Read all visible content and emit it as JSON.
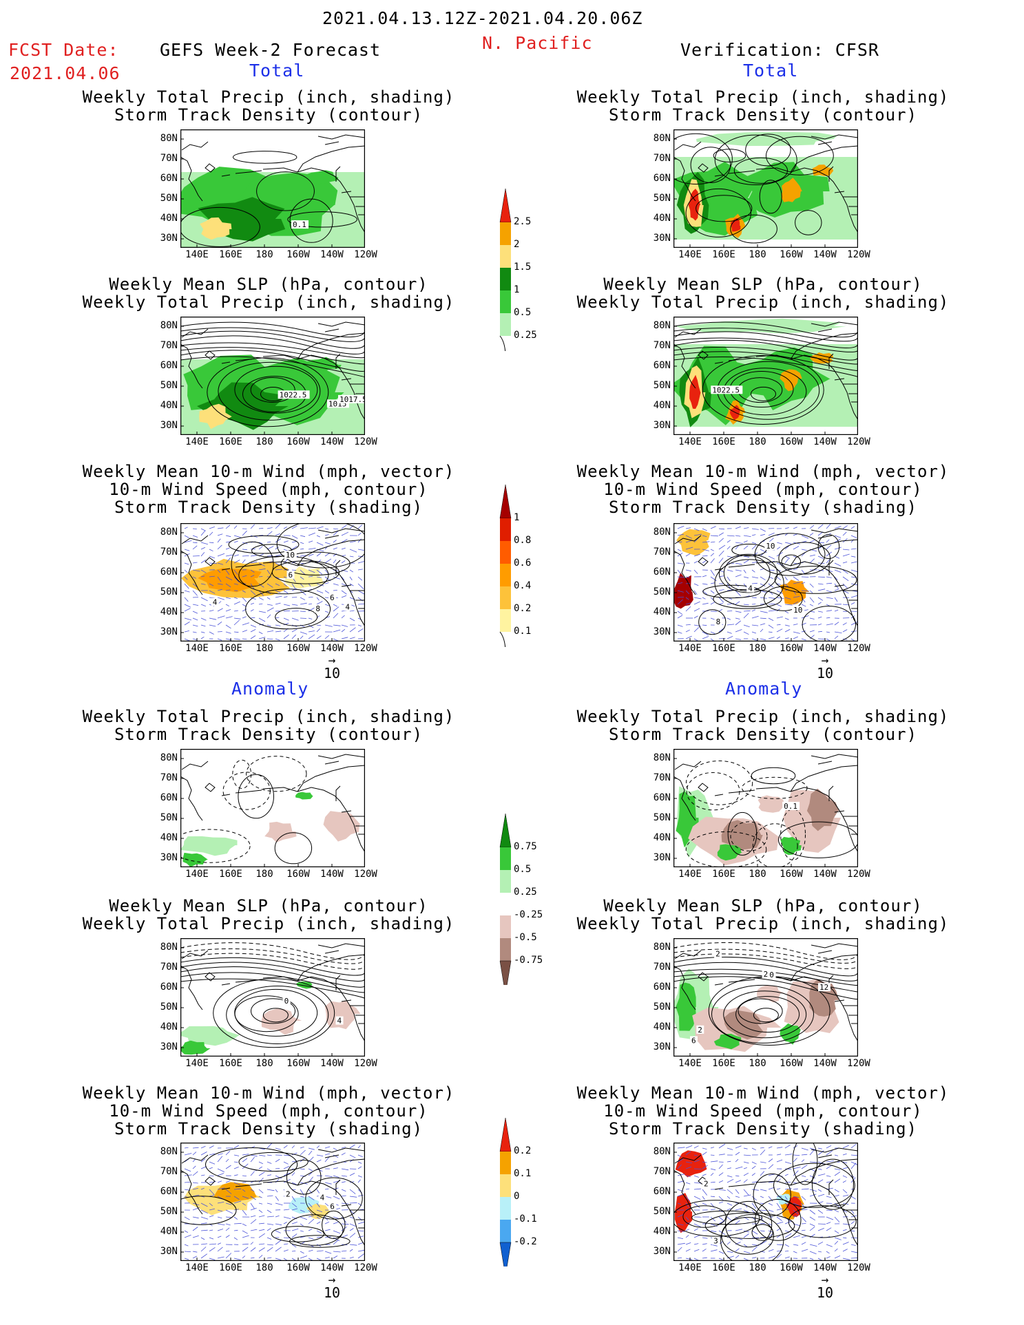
{
  "header": {
    "date_range": "2021.04.13.12Z-2021.04.20.06Z",
    "region": "N. Pacific",
    "fcst_label": "FCST Date:",
    "fcst_date": "2021.04.06",
    "left_title": "GEFS Week-2 Forecast",
    "right_title": "Verification: CFSR"
  },
  "sections": {
    "total": "Total",
    "anomaly": "Anomaly"
  },
  "panel_titles": {
    "precip_storm": [
      "Weekly Total Precip (inch, shading)",
      "Storm Track Density (contour)"
    ],
    "slp_precip": [
      "Weekly Mean SLP (hPa, contour)",
      "Weekly Total Precip (inch, shading)"
    ],
    "wind": [
      "Weekly Mean 10-m Wind (mph, vector)",
      "10-m Wind Speed (mph, contour)",
      "Storm Track Density (shading)"
    ]
  },
  "axes": {
    "lat": [
      "80N",
      "70N",
      "60N",
      "50N",
      "40N",
      "30N"
    ],
    "lon": [
      "140E",
      "160E",
      "180",
      "160W",
      "140W",
      "120W"
    ]
  },
  "vector_ref": "10",
  "colorbars": {
    "precip_total": {
      "labels": [
        "2.5",
        "2",
        "1.5",
        "1",
        "0.5",
        "0.25"
      ],
      "colors": [
        "#e8220e",
        "#f5a200",
        "#fde07a",
        "#118a11",
        "#39c839",
        "#b4f0b4"
      ]
    },
    "storm_total": {
      "labels": [
        "1",
        "0.8",
        "0.6",
        "0.4",
        "0.2",
        "0.1"
      ],
      "colors": [
        "#a50000",
        "#e01e00",
        "#ff5c00",
        "#ff9c00",
        "#fdc23a",
        "#fff3a0"
      ]
    },
    "precip_anom": {
      "labels": [
        "0.75",
        "0.5",
        "0.25",
        "-0.25",
        "-0.5",
        "-0.75"
      ],
      "colors": [
        "#118a11",
        "#39c839",
        "#b4f0b4",
        "#ffffff",
        "#e6c6bf",
        "#b18a7e",
        "#7a5044"
      ]
    },
    "storm_anom": {
      "labels": [
        "0.2",
        "0.1",
        "0",
        "-0.1",
        "-0.2"
      ],
      "colors": [
        "#e8220e",
        "#f5a200",
        "#fde07a",
        "#b8f0f8",
        "#4aa8f0",
        "#1060d0"
      ]
    }
  },
  "contour_labels": {
    "gefs_total_precip": [
      "0.1"
    ],
    "gefs_total_slp": [
      "1015",
      "1017.5",
      "1022.5"
    ],
    "cfsr_total_slp": [
      "1022.5"
    ],
    "gefs_total_wind": [
      "4",
      "6",
      "6",
      "4",
      "10",
      "8"
    ],
    "cfsr_total_wind": [
      "4",
      "8",
      "10",
      "10"
    ],
    "cfsr_anom_precip": [
      "0.1"
    ],
    "gefs_anom_slp": [
      "0",
      "4"
    ],
    "cfsr_anom_slp": [
      "12",
      "10",
      "2",
      "2",
      "6",
      "2"
    ],
    "gefs_anom_wind": [
      "4",
      "2",
      "6"
    ],
    "cfsr_anom_wind": [
      "2",
      "3"
    ]
  },
  "colors": {
    "title_red": "#e02020",
    "section_blue": "#1c30e8",
    "vector_blue": "#4a52d8"
  }
}
